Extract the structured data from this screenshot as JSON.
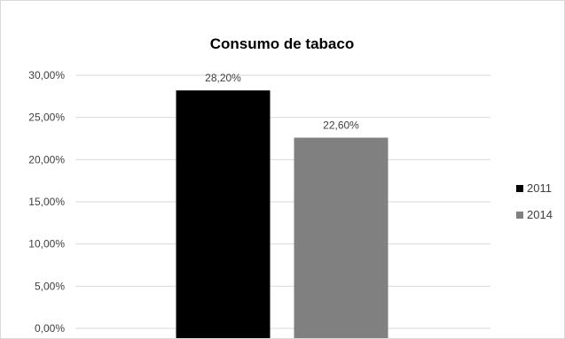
{
  "chart_data": {
    "type": "bar",
    "title": "Consumo de tabaco",
    "categories": [
      ""
    ],
    "series": [
      {
        "name": "2011",
        "values": [
          28.2
        ],
        "label": "28,20%",
        "color": "#000000"
      },
      {
        "name": "2014",
        "values": [
          22.6
        ],
        "label": "22,60%",
        "color": "#808080"
      }
    ],
    "ylim": [
      0,
      30
    ],
    "yticks": [
      {
        "value": 0,
        "label": "0,00%"
      },
      {
        "value": 5,
        "label": "5,00%"
      },
      {
        "value": 10,
        "label": "10,00%"
      },
      {
        "value": 15,
        "label": "15,00%"
      },
      {
        "value": 20,
        "label": "20,00%"
      },
      {
        "value": 25,
        "label": "25,00%"
      },
      {
        "value": 30,
        "label": "30,00%"
      }
    ],
    "grid": true,
    "legend": "right",
    "gridColor": "#d9d9d9"
  }
}
